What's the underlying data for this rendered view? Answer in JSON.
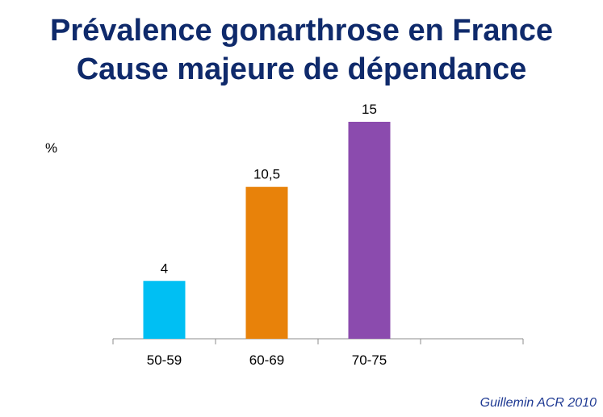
{
  "slide": {
    "title_line1": "Prévalence gonarthrose en France",
    "title_line2": "Cause majeure de dépendance",
    "source": "Guillemin ACR 2010"
  },
  "chart_data": {
    "type": "bar",
    "title": "Prévalence gonarthrose en France",
    "ylabel": "%",
    "xlabel": "",
    "categories": [
      "50-59",
      "60-69",
      "70-75",
      ""
    ],
    "values": [
      4,
      10.5,
      15,
      null
    ],
    "data_labels": [
      "4",
      "10,5",
      "15",
      ""
    ],
    "colors": [
      "#00BFF3",
      "#E8820A",
      "#8B4BAE"
    ],
    "ylim": [
      0,
      15
    ],
    "grid": false,
    "legend": "none"
  }
}
